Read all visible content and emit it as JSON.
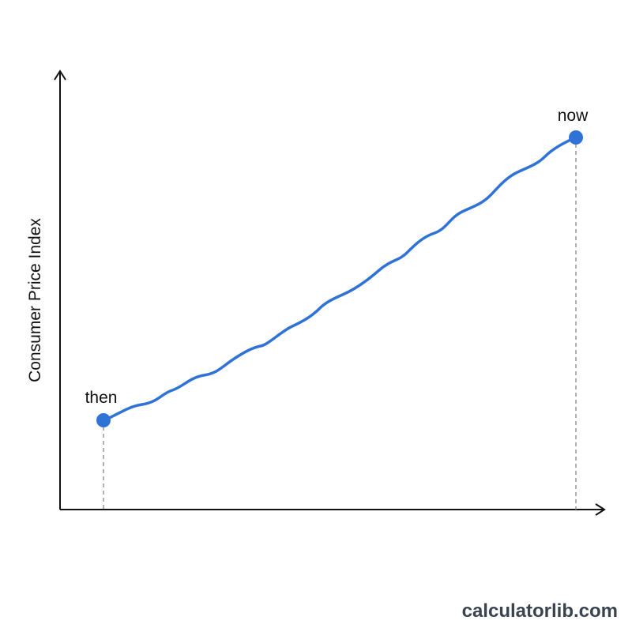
{
  "axis_label": "Consumer Price Index",
  "points": {
    "start": "then",
    "end": "now"
  },
  "watermark": "calculatorlib.com"
}
